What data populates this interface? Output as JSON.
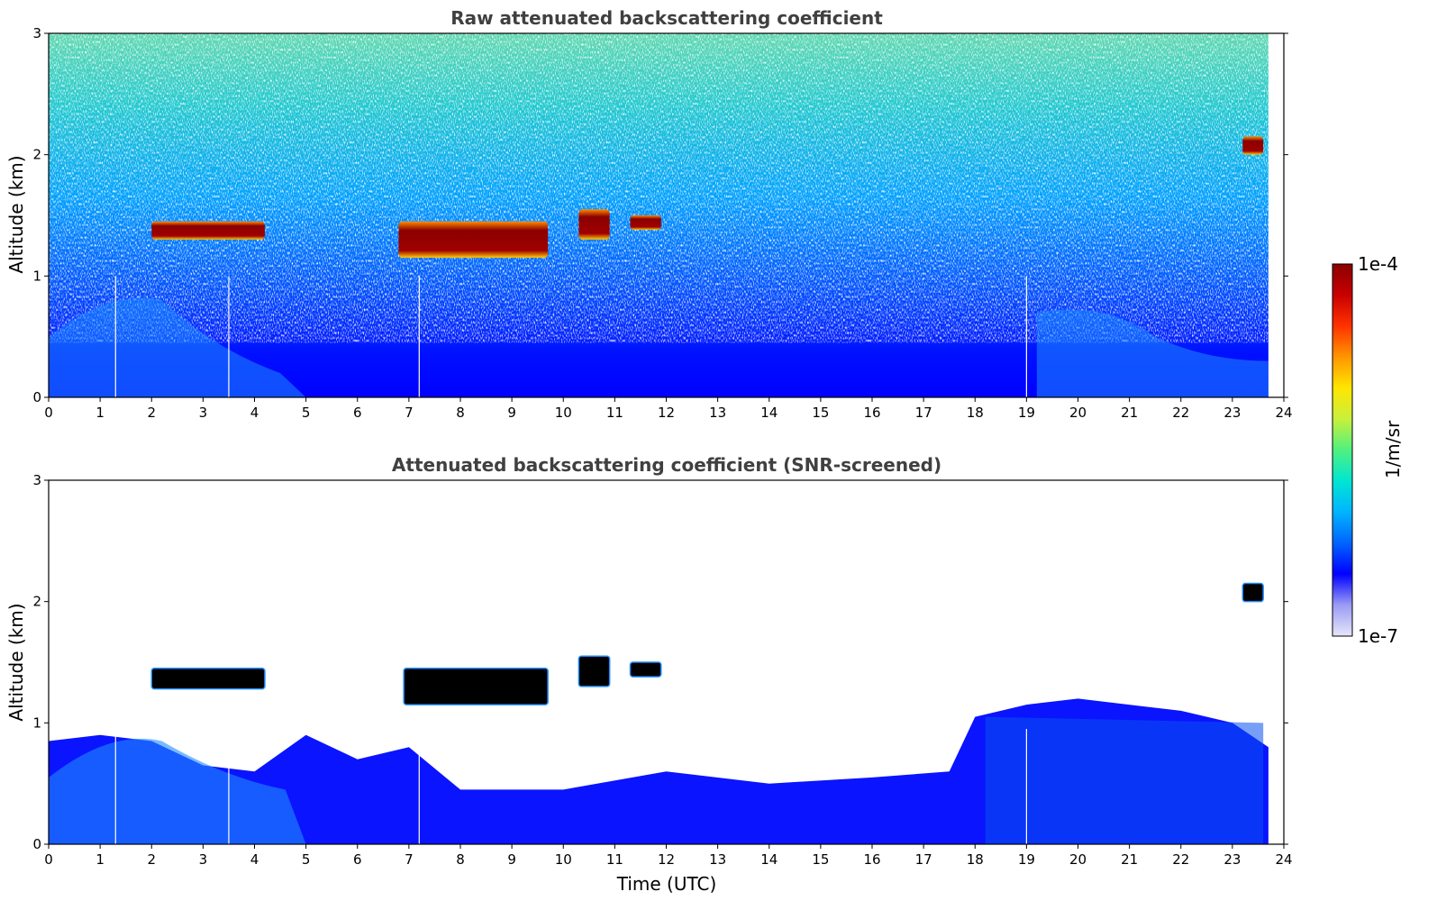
{
  "chart_data": [
    {
      "type": "heatmap",
      "title": "Raw attenuated backscattering coefficient",
      "xlabel": "",
      "ylabel": "Altitude (km)",
      "xlim": [
        0,
        24
      ],
      "ylim": [
        0,
        3
      ],
      "xticks": [
        "0",
        "1",
        "2",
        "3",
        "4",
        "5",
        "6",
        "7",
        "8",
        "9",
        "10",
        "11",
        "12",
        "13",
        "14",
        "15",
        "16",
        "17",
        "18",
        "19",
        "20",
        "21",
        "22",
        "23",
        "24"
      ],
      "yticks": [
        "0",
        "1",
        "2",
        "3"
      ],
      "data_end_time": 23.7,
      "gap_times": [
        1.3,
        3.5,
        7.2,
        19.0
      ],
      "cloud_layers": [
        {
          "start": 2.0,
          "end": 4.2,
          "base_km": 1.3,
          "top_km": 1.45
        },
        {
          "start": 6.8,
          "end": 9.7,
          "base_km": 1.15,
          "top_km": 1.45
        },
        {
          "start": 10.3,
          "end": 10.9,
          "base_km": 1.3,
          "top_km": 1.55
        },
        {
          "start": 11.3,
          "end": 11.9,
          "base_km": 1.38,
          "top_km": 1.5
        },
        {
          "start": 23.2,
          "end": 23.6,
          "base_km": 2.0,
          "top_km": 2.15
        }
      ]
    },
    {
      "type": "heatmap",
      "title": "Attenuated backscattering coefficient (SNR-screened)",
      "xlabel": "Time (UTC)",
      "ylabel": "Altitude (km)",
      "xlim": [
        0,
        24
      ],
      "ylim": [
        0,
        3
      ],
      "xticks": [
        "0",
        "1",
        "2",
        "3",
        "4",
        "5",
        "6",
        "7",
        "8",
        "9",
        "10",
        "11",
        "12",
        "13",
        "14",
        "15",
        "16",
        "17",
        "18",
        "19",
        "20",
        "21",
        "22",
        "23",
        "24"
      ],
      "yticks": [
        "0",
        "1",
        "2",
        "3"
      ],
      "data_end_time": 23.7,
      "gap_times": [
        1.3,
        3.5,
        7.2,
        19.0
      ],
      "boundary_layer_top_km": [
        [
          0,
          0.85
        ],
        [
          1,
          0.9
        ],
        [
          2,
          0.85
        ],
        [
          3,
          0.65
        ],
        [
          4,
          0.6
        ],
        [
          5,
          0.9
        ],
        [
          6,
          0.7
        ],
        [
          7,
          0.8
        ],
        [
          8,
          0.45
        ],
        [
          10,
          0.45
        ],
        [
          12,
          0.6
        ],
        [
          14,
          0.5
        ],
        [
          16,
          0.55
        ],
        [
          17.5,
          0.6
        ],
        [
          18,
          1.05
        ],
        [
          19,
          1.15
        ],
        [
          20,
          1.2
        ],
        [
          22,
          1.1
        ],
        [
          23,
          1.0
        ],
        [
          23.7,
          0.8
        ]
      ],
      "cloud_layers": [
        {
          "start": 2.0,
          "end": 4.2,
          "base_km": 1.28,
          "top_km": 1.45
        },
        {
          "start": 6.9,
          "end": 9.7,
          "base_km": 1.15,
          "top_km": 1.45
        },
        {
          "start": 10.3,
          "end": 10.9,
          "base_km": 1.3,
          "top_km": 1.55
        },
        {
          "start": 11.3,
          "end": 11.9,
          "base_km": 1.38,
          "top_km": 1.5
        },
        {
          "start": 23.2,
          "end": 23.6,
          "base_km": 2.0,
          "top_km": 2.15
        }
      ]
    }
  ],
  "colorbar": {
    "max_label": "1e-4",
    "min_label": "1e-7",
    "unit_label": "1/m/sr",
    "colors": [
      "#e6e6fa",
      "#9b9bf5",
      "#0000ff",
      "#0064ff",
      "#00b4ff",
      "#00e6d2",
      "#50f080",
      "#c8f03c",
      "#ffe600",
      "#ff9600",
      "#ff3200",
      "#c80000",
      "#8b0000"
    ]
  }
}
